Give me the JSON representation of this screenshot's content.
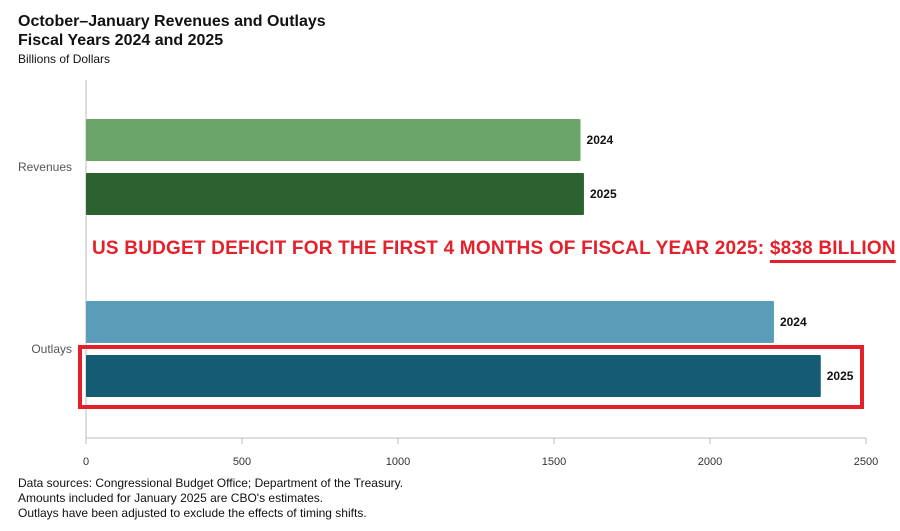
{
  "title_line1": "October–January Revenues and Outlays",
  "title_line2": "Fiscal Years 2024 and 2025",
  "units": "Billions of Dollars",
  "annotation": {
    "text": "US BUDGET DEFICIT FOR THE FIRST 4 MONTHS OF FISCAL YEAR 2025: ",
    "amount": "$838 BILLION",
    "color": "#e4212b"
  },
  "notes": [
    "Data sources: Congressional Budget Office; Department of the Treasury.",
    "Amounts included for January 2025 are CBO's estimates.",
    "Outlays have been adjusted to exclude the effects of timing shifts."
  ],
  "chart_data": {
    "type": "bar",
    "orientation": "horizontal",
    "categories": [
      "Revenues",
      "Outlays"
    ],
    "series": [
      {
        "name": "2024",
        "values": [
          1585,
          2205
        ],
        "colors": [
          "#6ba56a",
          "#5b9db8"
        ]
      },
      {
        "name": "2025",
        "values": [
          1596,
          2355
        ],
        "colors": [
          "#2b622f",
          "#135c73"
        ]
      }
    ],
    "xlim": [
      0,
      2500
    ],
    "xticks": [
      "0",
      "500",
      "1000",
      "1500",
      "2000",
      "2500"
    ],
    "grid": false,
    "highlight": {
      "category": "Outlays",
      "series": "2025",
      "color": "#e4212b"
    }
  }
}
